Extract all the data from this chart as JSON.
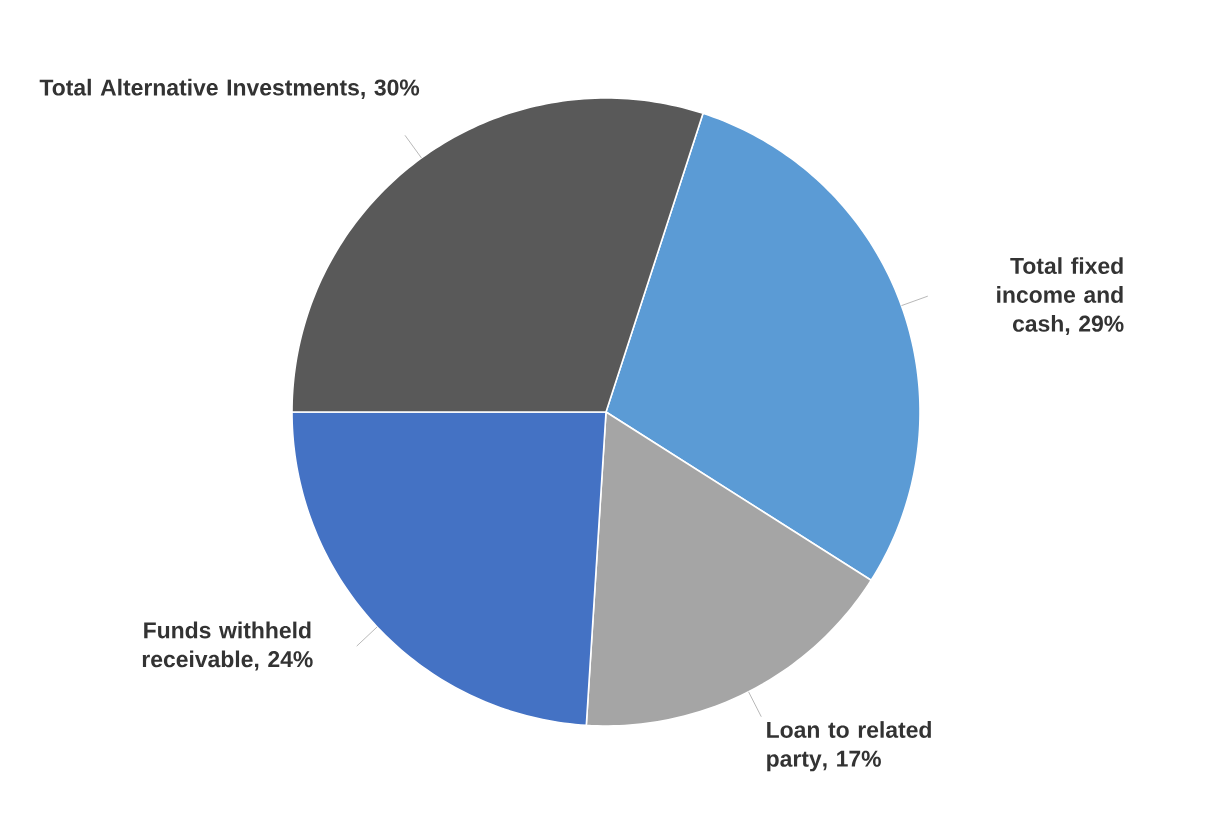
{
  "chart_data": {
    "type": "pie",
    "categories": [
      "Total fixed income and cash",
      "Loan to related party",
      "Funds withheld receivable",
      "Total Alternative Investments"
    ],
    "values": [
      29,
      17,
      24,
      30
    ],
    "value_labels": [
      ", 29%",
      ", 17%",
      ", 24%",
      ", 30%"
    ],
    "colors": [
      "#5b9bd5",
      "#a5a5a5",
      "#4472c4",
      "#595959"
    ]
  }
}
